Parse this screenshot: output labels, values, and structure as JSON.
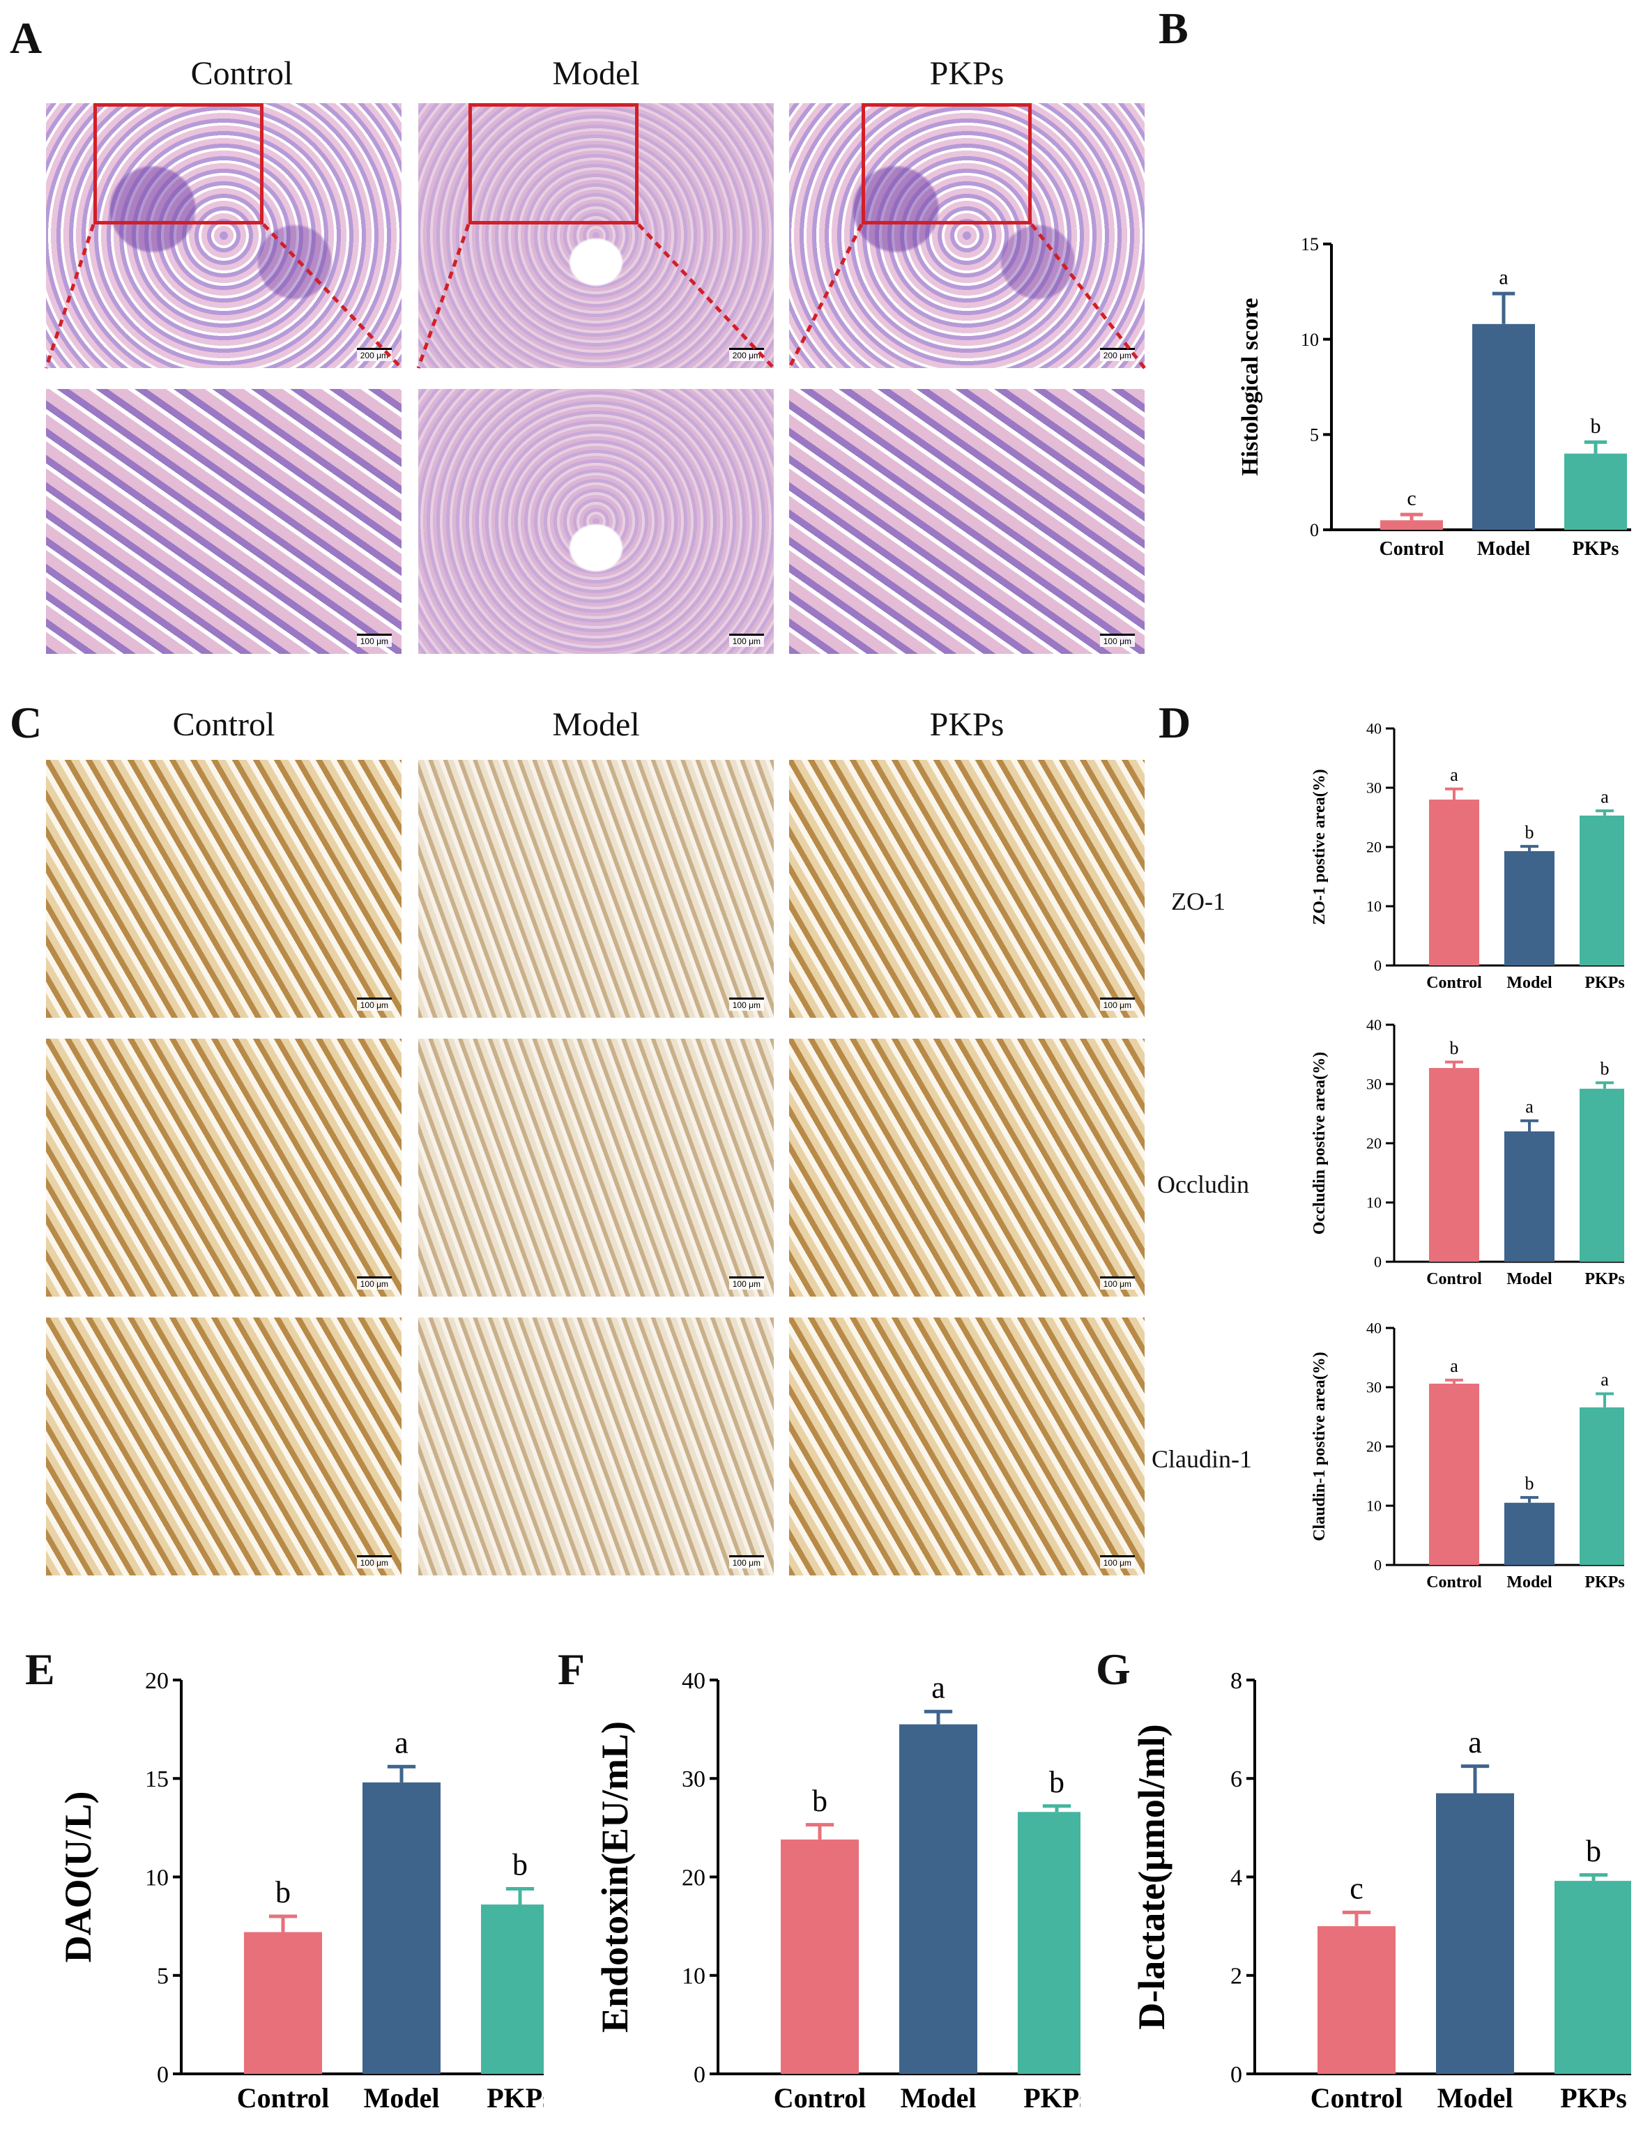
{
  "panels": {
    "A": {
      "letter": "A",
      "columns": [
        "Control",
        "Model",
        "PKPs"
      ],
      "scale_top": "200 μm",
      "scale_bottom": "100 μm"
    },
    "B": {
      "letter": "B"
    },
    "C": {
      "letter": "C",
      "columns": [
        "Control",
        "Model",
        "PKPs"
      ],
      "rows": [
        "ZO-1",
        "Occludin",
        "Claudin-1"
      ],
      "scale": "100 μm"
    },
    "D": {
      "letter": "D"
    },
    "E": {
      "letter": "E"
    },
    "F": {
      "letter": "F"
    },
    "G": {
      "letter": "G"
    }
  },
  "colors": {
    "Control": "#e8707a",
    "Model": "#3f648c",
    "PKPs": "#45b59f",
    "zoom_box": "#d21f26"
  },
  "chart_data": [
    {
      "id": "B",
      "type": "bar",
      "categories": [
        "Control",
        "Model",
        "PKPs"
      ],
      "values": [
        0.5,
        10.8,
        4.0
      ],
      "errors": [
        0.3,
        1.6,
        0.6
      ],
      "sig": [
        "c",
        "a",
        "b"
      ],
      "ylabel": "Histological score",
      "ylim": [
        0,
        15
      ],
      "yticks": [
        0,
        5,
        10,
        15
      ]
    },
    {
      "id": "D1",
      "type": "bar",
      "categories": [
        "Control",
        "Model",
        "PKPs"
      ],
      "values": [
        28.0,
        19.3,
        25.3
      ],
      "errors": [
        1.8,
        0.8,
        0.8
      ],
      "sig": [
        "a",
        "b",
        "a"
      ],
      "ylabel": "ZO-1 postive area(%)",
      "ylim": [
        0,
        40
      ],
      "yticks": [
        0,
        10,
        20,
        30,
        40
      ]
    },
    {
      "id": "D2",
      "type": "bar",
      "categories": [
        "Control",
        "Model",
        "PKPs"
      ],
      "values": [
        32.7,
        22.0,
        29.2
      ],
      "errors": [
        1.0,
        1.8,
        1.0
      ],
      "sig": [
        "b",
        "a",
        "b"
      ],
      "ylabel": "Occludin postive area(%)",
      "ylim": [
        0,
        40
      ],
      "yticks": [
        0,
        10,
        20,
        30,
        40
      ]
    },
    {
      "id": "D3",
      "type": "bar",
      "categories": [
        "Control",
        "Model",
        "PKPs"
      ],
      "values": [
        30.6,
        10.5,
        26.6
      ],
      "errors": [
        0.6,
        0.9,
        2.3
      ],
      "sig": [
        "a",
        "b",
        "a"
      ],
      "ylabel": "Claudin-1 postive area(%)",
      "ylim": [
        0,
        40
      ],
      "yticks": [
        0,
        10,
        20,
        30,
        40
      ]
    },
    {
      "id": "E",
      "type": "bar",
      "categories": [
        "Control",
        "Model",
        "PKPs"
      ],
      "values": [
        7.2,
        14.8,
        8.6
      ],
      "errors": [
        0.8,
        0.8,
        0.8
      ],
      "sig": [
        "b",
        "a",
        "b"
      ],
      "ylabel": "DAO(U/L)",
      "ylim": [
        0,
        20
      ],
      "yticks": [
        0,
        5,
        10,
        15,
        20
      ]
    },
    {
      "id": "F",
      "type": "bar",
      "categories": [
        "Control",
        "Model",
        "PKPs"
      ],
      "values": [
        23.8,
        35.5,
        26.6
      ],
      "errors": [
        1.5,
        1.3,
        0.6
      ],
      "sig": [
        "b",
        "a",
        "b"
      ],
      "ylabel": "Endotoxin(EU/mL)",
      "ylim": [
        0,
        40
      ],
      "yticks": [
        0,
        10,
        20,
        30,
        40
      ]
    },
    {
      "id": "G",
      "type": "bar",
      "categories": [
        "Control",
        "Model",
        "PKPs"
      ],
      "values": [
        3.0,
        5.7,
        3.92
      ],
      "errors": [
        0.28,
        0.55,
        0.12
      ],
      "sig": [
        "c",
        "a",
        "b"
      ],
      "ylabel": "D-lactate(μmol/ml)",
      "ylim": [
        0,
        8
      ],
      "yticks": [
        0,
        2,
        4,
        6,
        8
      ]
    }
  ]
}
